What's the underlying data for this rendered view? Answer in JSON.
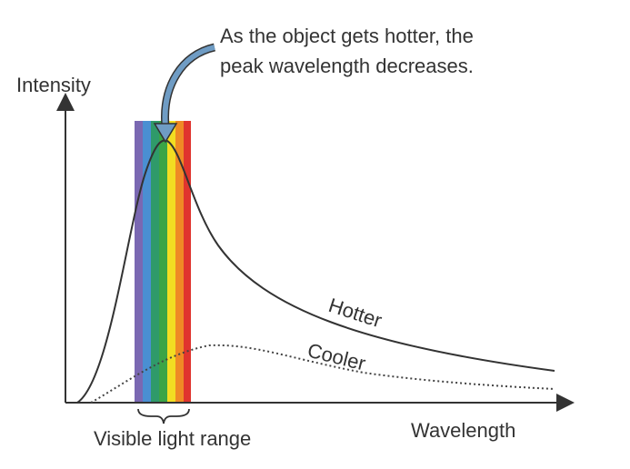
{
  "annotation": {
    "lines": [
      "As the object gets hotter, the",
      "peak wavelength decreases."
    ]
  },
  "axes": {
    "y_label": "Intensity",
    "x_label": "Wavelength"
  },
  "curves": {
    "hotter": "Hotter",
    "cooler": "Cooler"
  },
  "visible_range_label": "Visible light range"
}
